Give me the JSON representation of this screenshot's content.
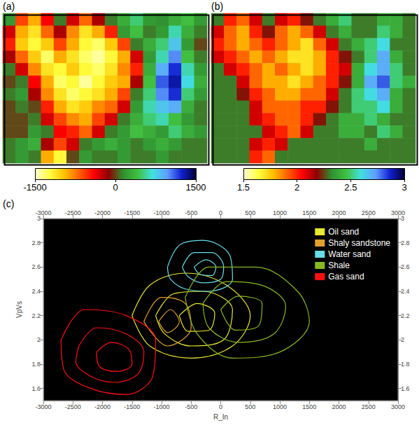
{
  "chart_data": [
    {
      "type": "heatmap",
      "title": "(a)",
      "tick_labels": false,
      "colorbar_range": [
        -1500,
        1500
      ],
      "colorbar_ticks": [
        -1500,
        0,
        1500
      ],
      "cells": [
        [
          200,
          -600,
          -900,
          -400,
          100,
          -300,
          -700,
          -200,
          100,
          300,
          500,
          200,
          150,
          300,
          400,
          200
        ],
        [
          -300,
          -900,
          -1100,
          -700,
          -200,
          -800,
          -1100,
          -900,
          -500,
          200,
          400,
          100,
          200,
          600,
          300,
          100
        ],
        [
          -500,
          -1000,
          -1200,
          -1000,
          -600,
          -900,
          -1200,
          -1300,
          -1000,
          -600,
          100,
          300,
          500,
          800,
          200,
          0
        ],
        [
          -200,
          -700,
          -1000,
          -1300,
          -900,
          -1100,
          -1300,
          -1400,
          -1200,
          -900,
          -300,
          200,
          600,
          1000,
          400,
          100
        ],
        [
          100,
          -300,
          -800,
          -1100,
          -1200,
          -1000,
          -1200,
          -1300,
          -1100,
          -800,
          -500,
          300,
          900,
          1200,
          600,
          200
        ],
        [
          0,
          100,
          -400,
          -900,
          -1300,
          -1200,
          -1400,
          -1200,
          -1000,
          -900,
          -200,
          400,
          1100,
          1300,
          700,
          300
        ],
        [
          100,
          200,
          -200,
          -800,
          -1100,
          -1300,
          -1200,
          -1100,
          -900,
          -600,
          100,
          500,
          1000,
          1200,
          500,
          200
        ],
        [
          0,
          100,
          0,
          -500,
          -900,
          -1100,
          -1000,
          -800,
          -700,
          -300,
          200,
          600,
          800,
          900,
          300,
          100
        ],
        [
          0,
          0,
          100,
          -300,
          -600,
          -800,
          -900,
          -600,
          -300,
          100,
          300,
          500,
          600,
          400,
          200,
          100
        ],
        [
          0,
          0,
          200,
          100,
          -400,
          -500,
          -700,
          -300,
          100,
          200,
          400,
          300,
          200,
          500,
          300,
          200
        ],
        [
          100,
          200,
          300,
          -200,
          -600,
          -300,
          100,
          200,
          300,
          200,
          100,
          200,
          300,
          200,
          100,
          100
        ],
        [
          100,
          200,
          100,
          -900,
          -1200,
          0,
          200,
          100,
          100,
          200,
          100,
          100,
          200,
          100,
          100,
          100
        ]
      ]
    },
    {
      "type": "heatmap",
      "title": "(b)",
      "tick_labels": false,
      "colorbar_range": [
        1.5,
        3
      ],
      "colorbar_ticks": [
        1.5,
        2,
        2.5,
        3
      ],
      "cells": [
        [
          2.3,
          2.0,
          1.9,
          2.1,
          2.3,
          2.1,
          2.0,
          2.2,
          2.3,
          2.4,
          2.5,
          2.3,
          2.3,
          2.4,
          2.4,
          2.3
        ],
        [
          2.1,
          1.9,
          1.8,
          2.0,
          2.2,
          1.9,
          1.8,
          1.9,
          2.1,
          2.3,
          2.4,
          2.3,
          2.3,
          2.5,
          2.4,
          2.3
        ],
        [
          2.0,
          1.9,
          1.8,
          1.9,
          2.0,
          1.9,
          1.8,
          1.7,
          1.9,
          2.1,
          2.3,
          2.4,
          2.5,
          2.6,
          2.3,
          2.3
        ],
        [
          2.1,
          2.0,
          1.9,
          1.8,
          1.9,
          1.8,
          1.7,
          1.7,
          1.8,
          2.0,
          2.2,
          2.3,
          2.5,
          2.7,
          2.4,
          2.3
        ],
        [
          2.3,
          2.1,
          2.0,
          1.9,
          1.8,
          1.9,
          1.8,
          1.7,
          1.8,
          2.0,
          2.1,
          2.4,
          2.6,
          2.7,
          2.5,
          2.3
        ],
        [
          2.3,
          2.3,
          2.1,
          1.9,
          1.8,
          1.8,
          1.7,
          1.8,
          1.9,
          2.0,
          2.2,
          2.4,
          2.7,
          2.8,
          2.5,
          2.4
        ],
        [
          2.3,
          2.3,
          2.2,
          2.0,
          1.9,
          1.8,
          1.8,
          1.9,
          1.9,
          2.1,
          2.3,
          2.5,
          2.6,
          2.7,
          2.4,
          2.3
        ],
        [
          2.3,
          2.3,
          2.3,
          2.1,
          1.9,
          1.9,
          1.9,
          2.0,
          2.0,
          2.2,
          2.3,
          2.5,
          2.5,
          2.6,
          2.4,
          2.3
        ],
        [
          2.3,
          2.3,
          2.3,
          2.1,
          2.0,
          1.9,
          1.9,
          2.0,
          2.2,
          2.3,
          2.4,
          2.4,
          2.5,
          2.4,
          2.3,
          2.3
        ],
        [
          2.3,
          2.3,
          2.3,
          2.3,
          2.1,
          2.0,
          1.9,
          2.1,
          2.3,
          2.3,
          2.4,
          2.4,
          2.3,
          2.5,
          2.4,
          2.3
        ],
        [
          2.3,
          2.3,
          2.3,
          2.1,
          2.0,
          2.1,
          2.3,
          2.3,
          2.3,
          2.3,
          2.3,
          2.3,
          2.4,
          2.3,
          2.3,
          2.3
        ],
        [
          2.3,
          2.3,
          2.3,
          2.0,
          1.9,
          2.3,
          2.3,
          2.3,
          2.3,
          2.3,
          2.3,
          2.3,
          2.3,
          2.3,
          2.3,
          2.3
        ]
      ]
    },
    {
      "type": "contour",
      "title": "(c)",
      "xlabel": "R_In",
      "ylabel": "VpVs",
      "xlim": [
        -3000,
        3000
      ],
      "xticks": [
        -3000,
        -2500,
        -2000,
        -1500,
        -1000,
        -500,
        0,
        500,
        1000,
        1500,
        2000,
        2500,
        3000
      ],
      "ylim": [
        1.5,
        3
      ],
      "yticks": [
        1.6,
        1.8,
        2,
        2.2,
        2.4,
        2.6,
        2.8,
        3
      ],
      "legend": "upper right",
      "series": [
        {
          "name": "Oil sand",
          "color": "#e8e830",
          "contours": [
            [
              [
                -1500,
                2.2
              ],
              [
                -1200,
                2.45
              ],
              [
                -600,
                2.55
              ],
              [
                100,
                2.45
              ],
              [
                500,
                2.2
              ],
              [
                200,
                1.95
              ],
              [
                -500,
                1.85
              ],
              [
                -1200,
                1.95
              ]
            ],
            [
              [
                -1100,
                2.2
              ],
              [
                -800,
                2.38
              ],
              [
                -300,
                2.4
              ],
              [
                200,
                2.25
              ],
              [
                50,
                2.0
              ],
              [
                -500,
                1.95
              ],
              [
                -950,
                2.05
              ]
            ],
            [
              [
                -700,
                2.2
              ],
              [
                -400,
                2.3
              ],
              [
                -100,
                2.22
              ],
              [
                -200,
                2.08
              ],
              [
                -550,
                2.07
              ]
            ]
          ]
        },
        {
          "name": "Shaly sandstone",
          "color": "#e0a030",
          "contours": [
            [
              [
                -1300,
                2.15
              ],
              [
                -1000,
                2.35
              ],
              [
                -600,
                2.3
              ],
              [
                -500,
                2.1
              ],
              [
                -900,
                1.95
              ]
            ],
            [
              [
                -1050,
                2.15
              ],
              [
                -850,
                2.25
              ],
              [
                -700,
                2.15
              ],
              [
                -900,
                2.06
              ]
            ]
          ]
        },
        {
          "name": "Water sand",
          "color": "#66dde8",
          "contours": [
            [
              [
                -900,
                2.6
              ],
              [
                -700,
                2.78
              ],
              [
                -300,
                2.82
              ],
              [
                150,
                2.7
              ],
              [
                200,
                2.5
              ],
              [
                -200,
                2.4
              ],
              [
                -600,
                2.42
              ],
              [
                -850,
                2.5
              ]
            ],
            [
              [
                -650,
                2.6
              ],
              [
                -450,
                2.72
              ],
              [
                -150,
                2.72
              ],
              [
                50,
                2.6
              ],
              [
                0,
                2.5
              ],
              [
                -300,
                2.47
              ],
              [
                -550,
                2.52
              ]
            ],
            [
              [
                -450,
                2.6
              ],
              [
                -250,
                2.66
              ],
              [
                -80,
                2.6
              ],
              [
                -150,
                2.53
              ],
              [
                -350,
                2.54
              ]
            ]
          ]
        },
        {
          "name": "Shale",
          "color": "#88b820",
          "contours": [
            [
              [
                -600,
                2.35
              ],
              [
                -200,
                2.6
              ],
              [
                600,
                2.6
              ],
              [
                1300,
                2.4
              ],
              [
                1500,
                2.15
              ],
              [
                1000,
                1.9
              ],
              [
                200,
                1.85
              ],
              [
                -400,
                2.05
              ]
            ],
            [
              [
                -300,
                2.3
              ],
              [
                100,
                2.48
              ],
              [
                700,
                2.45
              ],
              [
                1100,
                2.28
              ],
              [
                900,
                2.05
              ],
              [
                300,
                1.98
              ],
              [
                -200,
                2.1
              ]
            ],
            [
              [
                0,
                2.25
              ],
              [
                300,
                2.36
              ],
              [
                700,
                2.3
              ],
              [
                650,
                2.12
              ],
              [
                250,
                2.08
              ]
            ]
          ]
        },
        {
          "name": "Gas sand",
          "color": "#ff1010",
          "contours": [
            [
              [
                -2700,
                2.0
              ],
              [
                -2300,
                2.25
              ],
              [
                -1600,
                2.2
              ],
              [
                -1100,
                2.0
              ],
              [
                -1150,
                1.7
              ],
              [
                -1600,
                1.55
              ],
              [
                -2200,
                1.6
              ],
              [
                -2650,
                1.75
              ]
            ],
            [
              [
                -2400,
                1.95
              ],
              [
                -2100,
                2.1
              ],
              [
                -1600,
                2.05
              ],
              [
                -1300,
                1.9
              ],
              [
                -1400,
                1.72
              ],
              [
                -1800,
                1.65
              ],
              [
                -2200,
                1.7
              ],
              [
                -2450,
                1.82
              ]
            ],
            [
              [
                -2100,
                1.9
              ],
              [
                -1850,
                1.98
              ],
              [
                -1550,
                1.92
              ],
              [
                -1500,
                1.8
              ],
              [
                -1750,
                1.74
              ],
              [
                -2050,
                1.78
              ]
            ]
          ]
        }
      ]
    }
  ]
}
